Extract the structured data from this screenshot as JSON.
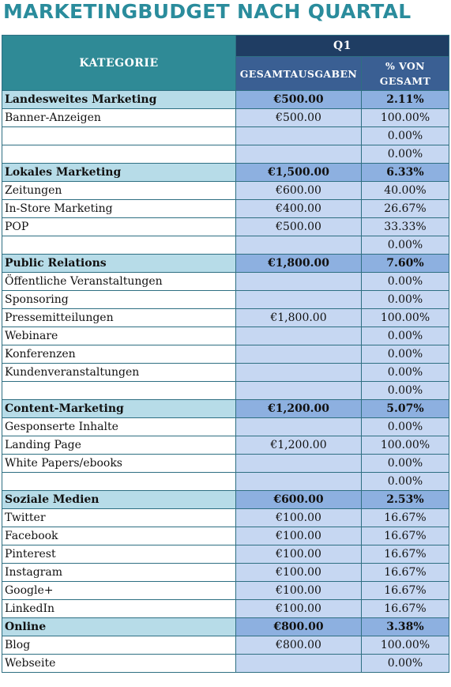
{
  "title": "MARKETINGBUDGET NACH QUARTAL",
  "header": {
    "category": "KATEGORIE",
    "quarter": "Q1",
    "total_spend": "GESAMTAUSGABEN",
    "percent_of_total": "% VON GESAMT"
  },
  "sections": [
    {
      "name": "Landesweites Marketing",
      "total": "€500.00",
      "percent": "2.11%",
      "items": [
        {
          "name": "Banner-Anzeigen",
          "total": "€500.00",
          "percent": "100.00%"
        },
        {
          "name": "",
          "total": "",
          "percent": "0.00%"
        },
        {
          "name": "",
          "total": "",
          "percent": "0.00%"
        }
      ]
    },
    {
      "name": "Lokales Marketing",
      "total": "€1,500.00",
      "percent": "6.33%",
      "items": [
        {
          "name": "Zeitungen",
          "total": "€600.00",
          "percent": "40.00%"
        },
        {
          "name": "In-Store Marketing",
          "total": "€400.00",
          "percent": "26.67%"
        },
        {
          "name": "POP",
          "total": "€500.00",
          "percent": "33.33%"
        },
        {
          "name": "",
          "total": "",
          "percent": "0.00%"
        }
      ]
    },
    {
      "name": "Public Relations",
      "total": "€1,800.00",
      "percent": "7.60%",
      "items": [
        {
          "name": "Öffentliche Veranstaltungen",
          "total": "",
          "percent": "0.00%"
        },
        {
          "name": "Sponsoring",
          "total": "",
          "percent": "0.00%"
        },
        {
          "name": "Pressemitteilungen",
          "total": "€1,800.00",
          "percent": "100.00%"
        },
        {
          "name": "Webinare",
          "total": "",
          "percent": "0.00%"
        },
        {
          "name": "Konferenzen",
          "total": "",
          "percent": "0.00%"
        },
        {
          "name": "Kundenveranstaltungen",
          "total": "",
          "percent": "0.00%"
        },
        {
          "name": "",
          "total": "",
          "percent": "0.00%"
        }
      ]
    },
    {
      "name": "Content-Marketing",
      "total": "€1,200.00",
      "percent": "5.07%",
      "items": [
        {
          "name": "Gesponserte Inhalte",
          "total": "",
          "percent": "0.00%"
        },
        {
          "name": "Landing Page",
          "total": "€1,200.00",
          "percent": "100.00%"
        },
        {
          "name": "White Papers/ebooks",
          "total": "",
          "percent": "0.00%"
        },
        {
          "name": "",
          "total": "",
          "percent": "0.00%"
        }
      ]
    },
    {
      "name": "Soziale Medien",
      "total": "€600.00",
      "percent": "2.53%",
      "items": [
        {
          "name": "Twitter",
          "total": "€100.00",
          "percent": "16.67%"
        },
        {
          "name": "Facebook",
          "total": "€100.00",
          "percent": "16.67%"
        },
        {
          "name": "Pinterest",
          "total": "€100.00",
          "percent": "16.67%"
        },
        {
          "name": "Instagram",
          "total": "€100.00",
          "percent": "16.67%"
        },
        {
          "name": "Google+",
          "total": "€100.00",
          "percent": "16.67%"
        },
        {
          "name": "LinkedIn",
          "total": "€100.00",
          "percent": "16.67%"
        }
      ]
    },
    {
      "name": "Online",
      "total": "€800.00",
      "percent": "3.38%",
      "items": [
        {
          "name": "Blog",
          "total": "€800.00",
          "percent": "100.00%"
        },
        {
          "name": "Webseite",
          "total": "",
          "percent": "0.00%"
        }
      ]
    }
  ],
  "colors": {
    "title": "#2a8c9c",
    "header_category": "#2f8a96",
    "header_quarter": "#1f3d63",
    "header_sub": "#3a5f93",
    "category_name_bg": "#b7dce8",
    "category_value_bg": "#8db0e0",
    "item_value_bg": "#c6d7f2"
  }
}
